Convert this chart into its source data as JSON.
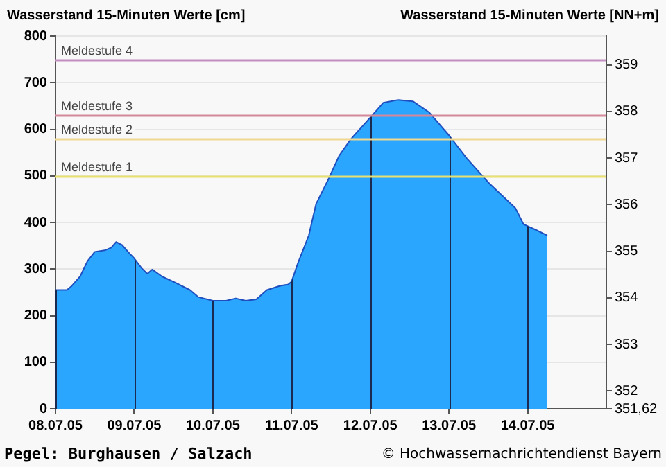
{
  "chart_data": {
    "type": "area",
    "ylabel": "Wasserstand 15-Minuten Werte [cm]",
    "y2label": "Wasserstand 15-Minuten Werte [NN+m]",
    "x": [
      "--07-08T00:00",
      "--07-08T03:30",
      "--07-08T05:00",
      "--07-08T07:30",
      "--07-08T09:45",
      "--07-08T12:00",
      "--07-08T15:00",
      "--07-08T17:00",
      "--07-08T18:30",
      "--07-08T20:15",
      "--07-08T22:30",
      "--07-09T00:00",
      "--07-09T02:15",
      "--07-09T04:00",
      "--07-09T05:30",
      "--07-09T08:30",
      "--07-09T12:45",
      "--07-09T17:00",
      "--07-09T19:30",
      "--07-10T00:00",
      "--07-10T04:00",
      "--07-10T07:00",
      "--07-10T10:00",
      "--07-10T13:15",
      "--07-10T16:30",
      "--07-10T20:30",
      "--07-10T23:00",
      "--07-11T00:00",
      "--07-11T02:00",
      "--07-11T05:15",
      "--07-11T07:30",
      "--07-11T11:15",
      "--07-11T14:30",
      "--07-11T18:00",
      "--07-12T00:00",
      "--07-12T04:00",
      "--07-12T08:30",
      "--07-12T13:00",
      "--07-12T18:00",
      "--07-13T00:00",
      "--07-13T05:30",
      "--07-13T12:15",
      "--07-13T20:15",
      "--07-13T22:45",
      "--07-14T02:30",
      "--07-14T06:00"
    ],
    "series": [
      {
        "color": "#2aa6ff",
        "values": [
          255,
          255,
          264,
          284,
          317,
          337,
          340,
          346,
          358,
          352,
          334,
          323,
          302,
          290,
          299,
          284,
          270,
          255,
          240,
          232,
          232,
          237,
          232,
          235,
          255,
          264,
          267,
          273,
          314,
          372,
          440,
          493,
          543,
          578,
          625,
          657,
          663,
          660,
          636,
          587,
          537,
          484,
          431,
          396,
          384,
          372
        ]
      }
    ],
    "xlim": [
      "--07-08",
      "--07-15"
    ],
    "xticks": [
      {
        "value": "--07-08",
        "label": "08.07.05"
      },
      {
        "value": "--07-09",
        "label": "09.07.05"
      },
      {
        "value": "--07-10",
        "label": "10.07.05"
      },
      {
        "value": "--07-11",
        "label": "11.07.05"
      },
      {
        "value": "--07-12",
        "label": "12.07.05"
      },
      {
        "value": "--07-13",
        "label": "13.07.05"
      },
      {
        "value": "--07-14",
        "label": "14.07.05"
      }
    ],
    "ylim": [
      0,
      800
    ],
    "yticks": [
      0,
      100,
      200,
      300,
      400,
      500,
      600,
      700,
      800
    ],
    "y2lim": [
      351.62,
      359.62
    ],
    "y2ticks": [
      {
        "value": 351.62,
        "label": "351,62"
      },
      352,
      353,
      354,
      355,
      356,
      357,
      358,
      359
    ],
    "ref_lines": [
      {
        "axis": "y",
        "value": 750,
        "label": "Meldestufe 4",
        "color": "#c48ec0"
      },
      {
        "axis": "y",
        "value": 630,
        "label": "Meldestufe 3",
        "color": "#d4889a"
      },
      {
        "axis": "y",
        "value": 580,
        "label": "Meldestufe 2",
        "color": "#f0d890"
      },
      {
        "axis": "y",
        "value": 500,
        "label": "Meldestufe 1",
        "color": "#e8e070"
      }
    ],
    "annotations": [
      "Pegel: Burghausen / Salzach",
      "© Hochwassernachrichtendienst Bayern"
    ],
    "grid": true,
    "legend": false
  }
}
